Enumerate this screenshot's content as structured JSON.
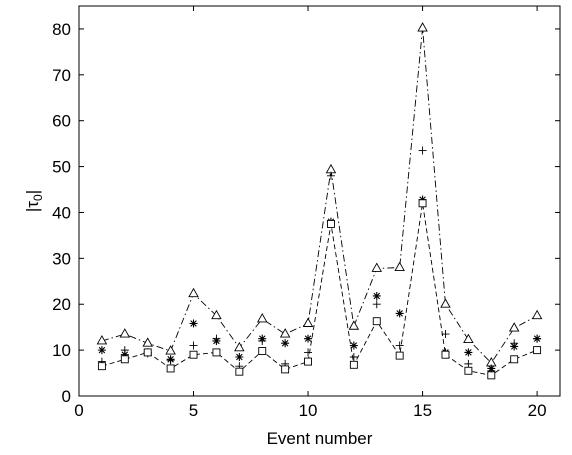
{
  "chart_data": {
    "type": "scatter",
    "title": "",
    "xlabel": "Event number",
    "ylabel": "|τ₀|",
    "ylabel_parts": {
      "main": "|τ",
      "sub": "0",
      "end": "|"
    },
    "xlim": [
      0,
      21
    ],
    "ylim": [
      0,
      85
    ],
    "x_ticks": [
      0,
      5,
      10,
      15,
      20
    ],
    "y_ticks": [
      0,
      10,
      20,
      30,
      40,
      50,
      60,
      70,
      80
    ],
    "grid": false,
    "legend": "none",
    "x": [
      1,
      2,
      3,
      4,
      5,
      6,
      7,
      8,
      9,
      10,
      11,
      12,
      13,
      14,
      15,
      16,
      17,
      18,
      19,
      20
    ],
    "series": [
      {
        "marker": "triangle",
        "line": "dash-dot",
        "values": [
          12.0,
          13.5,
          11.5,
          9.8,
          22.3,
          17.5,
          10.5,
          16.8,
          13.5,
          15.8,
          49.3,
          15.2,
          27.8,
          28.0,
          80.2,
          20.0,
          12.3,
          7.2,
          14.8,
          17.5
        ]
      },
      {
        "marker": "plus",
        "line": "none",
        "values": [
          7.5,
          10.0,
          9.3,
          7.8,
          11.0,
          12.5,
          6.5,
          12.0,
          7.0,
          9.5,
          48.0,
          8.5,
          20.0,
          11.0,
          53.5,
          13.5,
          7.0,
          5.5,
          11.5,
          12.5
        ]
      },
      {
        "marker": "asterisk",
        "line": "none",
        "values": [
          10.0,
          9.0,
          9.5,
          8.0,
          15.8,
          12.0,
          8.5,
          12.5,
          11.5,
          12.5,
          38.0,
          11.0,
          21.8,
          18.0,
          42.8,
          9.5,
          9.5,
          6.0,
          10.8,
          12.5
        ]
      },
      {
        "marker": "square",
        "line": "dashed",
        "values": [
          6.5,
          8.0,
          9.5,
          6.0,
          9.0,
          9.5,
          5.3,
          9.8,
          5.8,
          7.5,
          37.5,
          6.8,
          16.3,
          8.8,
          42.0,
          9.0,
          5.5,
          4.5,
          8.0,
          10.0
        ]
      }
    ]
  }
}
